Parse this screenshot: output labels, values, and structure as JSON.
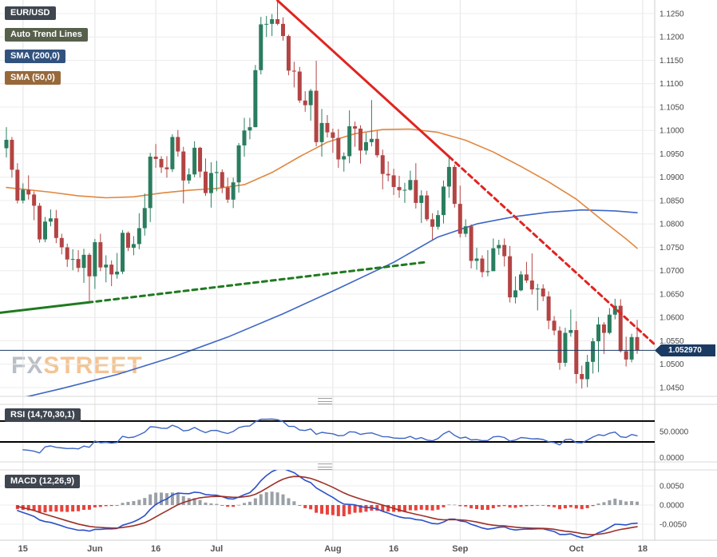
{
  "legend": {
    "pair": "EUR/USD",
    "auto_trend_lines": "Auto Trend Lines",
    "sma200": "SMA (200,0)",
    "sma50": "SMA (50,0)"
  },
  "watermark": {
    "fx": "FX",
    "street": "STREET"
  },
  "current_price": {
    "text": "1.052970",
    "value": 1.05297
  },
  "price_axis": {
    "labels": [
      "1.1250",
      "1.1200",
      "1.1150",
      "1.1100",
      "1.1050",
      "1.1000",
      "1.0950",
      "1.0900",
      "1.0850",
      "1.0800",
      "1.0750",
      "1.0700",
      "1.0650",
      "1.0600",
      "1.0550",
      "1.0500",
      "1.0450"
    ]
  },
  "x_axis": {
    "ticks": [
      {
        "index": 3,
        "label": "15"
      },
      {
        "index": 16,
        "label": "Jun"
      },
      {
        "index": 27,
        "label": "16"
      },
      {
        "index": 38,
        "label": "Jul"
      },
      {
        "index": 59,
        "label": "Aug"
      },
      {
        "index": 70,
        "label": "16"
      },
      {
        "index": 82,
        "label": "Sep"
      },
      {
        "index": 103,
        "label": "Oct"
      },
      {
        "index": 115,
        "label": "18"
      }
    ]
  },
  "panels": {
    "rsi": {
      "label": "RSI (14,70,30,1)",
      "levels": [
        70,
        30
      ],
      "axis_labels": [
        {
          "value": 50,
          "text": "50.0000"
        },
        {
          "value": 0,
          "text": "0.0000"
        }
      ]
    },
    "macd": {
      "label": "MACD (12,26,9)",
      "axis_labels": [
        {
          "value": 0.005,
          "text": "0.0050"
        },
        {
          "value": 0,
          "text": "0.0000"
        },
        {
          "value": -0.005,
          "text": "-0.0050"
        }
      ]
    }
  },
  "colors": {
    "bull": "#2a7d5f",
    "bear": "#b34444",
    "sma200": "#3d66c4",
    "sma50": "#e0873f",
    "trend_down": "#e02421",
    "trend_up": "#1f7a1f",
    "rsi": "#3d66c4",
    "macd": "#2b50c8",
    "macd_signal": "#9c2f28",
    "hist_pos": "#9aa0a6",
    "hist_neg": "#e8423c",
    "price_line": "#1b3a63",
    "grid": "#ececec",
    "grid_v": "#e3e3e3",
    "axis_text": "#474747"
  },
  "chart_data": {
    "type": "candlestick",
    "title": "EUR/USD",
    "instrument": "EUR/USD",
    "last_price": 1.05297,
    "y_axis": {
      "min": 1.045,
      "max": 1.125,
      "step": 0.005
    },
    "candles": [
      [
        "May 10",
        1.0962,
        1.1007,
        1.0942,
        1.098
      ],
      [
        "May 11",
        1.098,
        1.0986,
        1.0899,
        1.0916
      ],
      [
        "May 12",
        1.0916,
        1.093,
        1.0844,
        1.085
      ],
      [
        "May 15",
        1.085,
        1.0887,
        1.0844,
        1.0873
      ],
      [
        "May 16",
        1.0873,
        1.0904,
        1.0852,
        1.0863
      ],
      [
        "May 17",
        1.0863,
        1.087,
        1.0808,
        1.0839
      ],
      [
        "May 18",
        1.0839,
        1.0845,
        1.076,
        1.0767
      ],
      [
        "May 19",
        1.0767,
        1.0815,
        1.0761,
        1.0805
      ],
      [
        "May 22",
        1.0805,
        1.0831,
        1.0795,
        1.0812
      ],
      [
        "May 23",
        1.0812,
        1.083,
        1.0759,
        1.077
      ],
      [
        "May 24",
        1.077,
        1.0779,
        1.0735,
        1.075
      ],
      [
        "May 25",
        1.075,
        1.0758,
        1.0708,
        1.0724
      ],
      [
        "May 26",
        1.0724,
        1.0746,
        1.0701,
        1.0725
      ],
      [
        "May 29",
        1.0725,
        1.0744,
        1.0697,
        1.0706
      ],
      [
        "May 30",
        1.0706,
        1.0747,
        1.0674,
        1.0734
      ],
      [
        "May 31",
        1.0734,
        1.0738,
        1.0635,
        1.0688
      ],
      [
        "Jun 1",
        1.0688,
        1.0768,
        1.0661,
        1.0761
      ],
      [
        "Jun 2",
        1.0761,
        1.0779,
        1.0699,
        1.0707
      ],
      [
        "Jun 5",
        1.0707,
        1.0733,
        1.0675,
        1.0713
      ],
      [
        "Jun 6",
        1.0713,
        1.0722,
        1.0667,
        1.0692
      ],
      [
        "Jun 7",
        1.0692,
        1.0738,
        1.0683,
        1.0698
      ],
      [
        "Jun 8",
        1.0698,
        1.0787,
        1.0693,
        1.0781
      ],
      [
        "Jun 9",
        1.0781,
        1.0784,
        1.0742,
        1.0749
      ],
      [
        "Jun 12",
        1.0749,
        1.0774,
        1.0733,
        1.0757
      ],
      [
        "Jun 13",
        1.0757,
        1.0823,
        1.0746,
        1.0791
      ],
      [
        "Jun 14",
        1.0791,
        1.0865,
        1.0775,
        1.0834
      ],
      [
        "Jun 15",
        1.0834,
        1.0952,
        1.0804,
        1.0944
      ],
      [
        "Jun 16",
        1.0944,
        1.0971,
        1.092,
        1.0939
      ],
      [
        "Jun 19",
        1.0939,
        1.0945,
        1.0909,
        1.0921
      ],
      [
        "Jun 20",
        1.0921,
        1.0945,
        1.0899,
        1.0917
      ],
      [
        "Jun 21",
        1.0917,
        1.0992,
        1.0911,
        1.0986
      ],
      [
        "Jun 22",
        1.0986,
        1.1001,
        1.0944,
        1.0955
      ],
      [
        "Jun 23",
        1.0955,
        1.0965,
        1.0844,
        1.0893
      ],
      [
        "Jun 26",
        1.0893,
        1.0919,
        1.0886,
        1.0906
      ],
      [
        "Jun 27",
        1.0906,
        1.0977,
        1.09,
        1.0963
      ],
      [
        "Jun 28",
        1.0963,
        1.0965,
        1.0899,
        1.0912
      ],
      [
        "Jun 29",
        1.0912,
        1.094,
        1.086,
        1.0866
      ],
      [
        "Jun 30",
        1.0866,
        1.0932,
        1.0835,
        1.0909
      ],
      [
        "Jul 3",
        1.0909,
        1.0935,
        1.087,
        1.0911
      ],
      [
        "Jul 4",
        1.0911,
        1.0917,
        1.0866,
        1.0878
      ],
      [
        "Jul 5",
        1.0878,
        1.0899,
        1.0845,
        1.0852
      ],
      [
        "Jul 6",
        1.0852,
        1.0899,
        1.0834,
        1.0889
      ],
      [
        "Jul 7",
        1.0889,
        1.0973,
        1.0867,
        1.0968
      ],
      [
        "Jul 10",
        1.0968,
        1.1027,
        1.0944,
        1.1
      ],
      [
        "Jul 11",
        1.1,
        1.1027,
        1.0981,
        1.1007
      ],
      [
        "Jul 12",
        1.1007,
        1.114,
        1.1007,
        1.1129
      ],
      [
        "Jul 13",
        1.1129,
        1.1243,
        1.112,
        1.1227
      ],
      [
        "Jul 14",
        1.1227,
        1.1245,
        1.12,
        1.1228
      ],
      [
        "Jul 17",
        1.1228,
        1.1249,
        1.1202,
        1.1238
      ],
      [
        "Jul 18",
        1.1238,
        1.1276,
        1.1225,
        1.1228
      ],
      [
        "Jul 19",
        1.1228,
        1.1242,
        1.1192,
        1.1202
      ],
      [
        "Jul 20",
        1.1202,
        1.1205,
        1.1118,
        1.1128
      ],
      [
        "Jul 21",
        1.1128,
        1.1147,
        1.1092,
        1.1126
      ],
      [
        "Jul 24",
        1.1126,
        1.1136,
        1.1059,
        1.1064
      ],
      [
        "Jul 25",
        1.1064,
        1.1084,
        1.104,
        1.1054
      ],
      [
        "Jul 26",
        1.1054,
        1.1089,
        1.1021,
        1.1085
      ],
      [
        "Jul 27",
        1.1085,
        1.1149,
        1.0966,
        1.0975
      ],
      [
        "Jul 28",
        1.0975,
        1.1046,
        1.0944,
        1.1016
      ],
      [
        "Jul 31",
        1.1016,
        1.1033,
        1.0985,
        1.0996
      ],
      [
        "Aug 1",
        1.0996,
        1.1004,
        1.0952,
        1.0984
      ],
      [
        "Aug 2",
        1.0984,
        1.1003,
        1.092,
        1.0938
      ],
      [
        "Aug 3",
        1.0938,
        1.0953,
        1.0912,
        1.0945
      ],
      [
        "Aug 4",
        1.0945,
        1.1043,
        1.093,
        1.1009
      ],
      [
        "Aug 7",
        1.1009,
        1.1019,
        1.0965,
        1.1004
      ],
      [
        "Aug 8",
        1.1004,
        1.1011,
        1.0929,
        1.0957
      ],
      [
        "Aug 9",
        1.0957,
        1.0995,
        1.0948,
        1.0975
      ],
      [
        "Aug 10",
        1.0975,
        1.1065,
        1.0966,
        1.0982
      ],
      [
        "Aug 11",
        1.0982,
        1.0999,
        1.0942,
        1.0947
      ],
      [
        "Aug 14",
        1.0947,
        1.0959,
        1.0874,
        1.0907
      ],
      [
        "Aug 15",
        1.0907,
        1.0934,
        1.0891,
        1.0904
      ],
      [
        "Aug 16",
        1.0904,
        1.0918,
        1.0862,
        1.0879
      ],
      [
        "Aug 17",
        1.0879,
        1.0903,
        1.0856,
        1.0872
      ],
      [
        "Aug 18",
        1.0872,
        1.0888,
        1.0845,
        1.0873
      ],
      [
        "Aug 21",
        1.0873,
        1.0914,
        1.0871,
        1.0894
      ],
      [
        "Aug 22",
        1.0894,
        1.093,
        1.0833,
        1.0845
      ],
      [
        "Aug 23",
        1.0845,
        1.0872,
        1.0802,
        1.0861
      ],
      [
        "Aug 24",
        1.0861,
        1.0871,
        1.0806,
        1.081
      ],
      [
        "Aug 25",
        1.081,
        1.0823,
        1.0766,
        1.0794
      ],
      [
        "Aug 28",
        1.0794,
        1.0829,
        1.0788,
        1.0819
      ],
      [
        "Aug 29",
        1.0819,
        1.0893,
        1.0801,
        1.088
      ],
      [
        "Aug 30",
        1.088,
        1.0945,
        1.0856,
        1.0922
      ],
      [
        "Aug 31",
        1.0922,
        1.0927,
        1.0835,
        1.0843
      ],
      [
        "Sep 1",
        1.0843,
        1.0882,
        1.0771,
        1.0779
      ],
      [
        "Sep 4",
        1.0779,
        1.081,
        1.0772,
        1.0795
      ],
      [
        "Sep 5",
        1.0795,
        1.0799,
        1.0705,
        1.0721
      ],
      [
        "Sep 6",
        1.0721,
        1.0749,
        1.0702,
        1.0726
      ],
      [
        "Sep 7",
        1.0726,
        1.0733,
        1.0686,
        1.0697
      ],
      [
        "Sep 8",
        1.0697,
        1.0744,
        1.0688,
        1.0699
      ],
      [
        "Sep 11",
        1.0699,
        1.0769,
        1.0699,
        1.0748
      ],
      [
        "Sep 12",
        1.0748,
        1.0766,
        1.0734,
        1.0755
      ],
      [
        "Sep 13",
        1.0755,
        1.0769,
        1.0709,
        1.0731
      ],
      [
        "Sep 14",
        1.0731,
        1.0753,
        1.0632,
        1.0643
      ],
      [
        "Sep 15",
        1.0643,
        1.0688,
        1.063,
        1.0658
      ],
      [
        "Sep 18",
        1.0658,
        1.0699,
        1.0656,
        1.0692
      ],
      [
        "Sep 19",
        1.0692,
        1.0719,
        1.0674,
        1.0679
      ],
      [
        "Sep 20",
        1.0679,
        1.0737,
        1.0649,
        1.066
      ],
      [
        "Sep 21",
        1.066,
        1.0672,
        1.0615,
        1.0662
      ],
      [
        "Sep 22",
        1.0662,
        1.0671,
        1.0635,
        1.0645
      ],
      [
        "Sep 25",
        1.0645,
        1.0656,
        1.0575,
        1.0593
      ],
      [
        "Sep 26",
        1.0593,
        1.0603,
        1.0562,
        1.0572
      ],
      [
        "Sep 27",
        1.0572,
        1.0581,
        1.0488,
        1.0503
      ],
      [
        "Sep 28",
        1.0503,
        1.0578,
        1.0495,
        1.0567
      ],
      [
        "Sep 29",
        1.0567,
        1.0617,
        1.0559,
        1.0573
      ],
      [
        "Oct 2",
        1.0573,
        1.0592,
        1.0459,
        1.0479
      ],
      [
        "Oct 3",
        1.0479,
        1.0497,
        1.0448,
        1.0468
      ],
      [
        "Oct 4",
        1.0468,
        1.052,
        1.0451,
        1.0505
      ],
      [
        "Oct 5",
        1.0505,
        1.0556,
        1.048,
        1.0549
      ],
      [
        "Oct 6",
        1.0549,
        1.0601,
        1.0483,
        1.0585
      ],
      [
        "Oct 9",
        1.0585,
        1.059,
        1.0522,
        1.0567
      ],
      [
        "Oct 10",
        1.0567,
        1.062,
        1.0564,
        1.0606
      ],
      [
        "Oct 11",
        1.0606,
        1.064,
        1.0596,
        1.0625
      ],
      [
        "Oct 12",
        1.0625,
        1.0639,
        1.0525,
        1.0528
      ],
      [
        "Oct 13",
        1.0528,
        1.0559,
        1.0495,
        1.051
      ],
      [
        "Oct 16",
        1.051,
        1.0565,
        1.0504,
        1.0558
      ],
      [
        "Oct 17",
        1.0558,
        1.0595,
        1.0522,
        1.053
      ]
    ],
    "overlays": {
      "sma200": {
        "period": 200,
        "points": [
          [
            0,
            1.042
          ],
          [
            10,
            1.0448
          ],
          [
            20,
            1.0478
          ],
          [
            30,
            1.0515
          ],
          [
            40,
            1.0558
          ],
          [
            50,
            1.0608
          ],
          [
            60,
            1.0662
          ],
          [
            70,
            1.0718
          ],
          [
            78,
            1.0772
          ],
          [
            85,
            1.08
          ],
          [
            92,
            1.0816
          ],
          [
            98,
            1.0825
          ],
          [
            104,
            1.083
          ],
          [
            110,
            1.0828
          ],
          [
            114,
            1.0824
          ]
        ]
      },
      "sma50": {
        "period": 50,
        "points": [
          [
            0,
            1.0878
          ],
          [
            8,
            1.0868
          ],
          [
            13,
            1.086
          ],
          [
            18,
            1.0856
          ],
          [
            23,
            1.0858
          ],
          [
            28,
            1.0866
          ],
          [
            33,
            1.0872
          ],
          [
            38,
            1.0876
          ],
          [
            43,
            1.0884
          ],
          [
            48,
            1.091
          ],
          [
            53,
            1.0944
          ],
          [
            58,
            1.0975
          ],
          [
            63,
            1.0993
          ],
          [
            68,
            1.1002
          ],
          [
            73,
            1.1003
          ],
          [
            78,
            1.0996
          ],
          [
            83,
            1.0979
          ],
          [
            88,
            1.0954
          ],
          [
            93,
            1.0923
          ],
          [
            98,
            1.089
          ],
          [
            103,
            1.0853
          ],
          [
            108,
            1.0805
          ],
          [
            112,
            1.0768
          ],
          [
            114,
            1.0748
          ]
        ]
      },
      "trend_lines": [
        {
          "direction": "down",
          "style": "solid-then-dashed",
          "solid": [
            [
              49,
              1.1278
            ],
            [
              80,
              1.0944
            ]
          ],
          "dashed": [
            [
              80,
              1.0944
            ],
            [
              118.5,
              1.0528
            ]
          ]
        },
        {
          "direction": "up",
          "style": "solid-then-dashed",
          "solid": [
            [
              -1.2,
              1.061
            ],
            [
              14.7,
              1.0632
            ]
          ],
          "dashed": [
            [
              14.7,
              1.0632
            ],
            [
              75.6,
              1.0718
            ]
          ]
        }
      ]
    },
    "indicators": {
      "rsi": {
        "period": 14,
        "overbought": 70,
        "oversold": 30,
        "scale": [
          0,
          100
        ]
      },
      "macd": {
        "fast": 12,
        "slow": 26,
        "signal": 9,
        "scale": [
          -0.00917,
          0.00917
        ]
      }
    }
  }
}
